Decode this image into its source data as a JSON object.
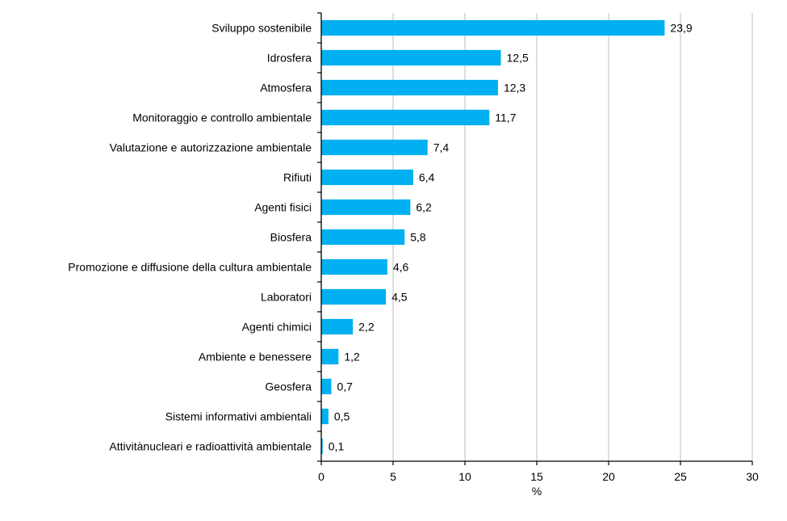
{
  "chart_data": {
    "type": "bar",
    "orientation": "horizontal",
    "title": "",
    "xlabel": "%",
    "ylabel": "",
    "xlim": [
      0,
      30
    ],
    "x_ticks": [
      0,
      5,
      10,
      15,
      20,
      25,
      30
    ],
    "x_tick_labels": [
      "0",
      "5",
      "10",
      "15",
      "20",
      "25",
      "30"
    ],
    "grid": "vertical",
    "legend": "none",
    "bar_color": "#00B0F0",
    "categories": [
      "Sviluppo sostenibile",
      "Idrosfera",
      "Atmosfera",
      "Monitoraggio e controllo ambientale",
      "Valutazione e autorizzazione ambientale",
      "Rifiuti",
      "Agenti fisici",
      "Biosfera",
      "Promozione e diffusione della cultura ambientale",
      "Laboratori",
      "Agenti chimici",
      "Ambiente e benessere",
      "Geosfera",
      "Sistemi informativi ambientali",
      "Attivitànucleari e radioattività ambientale"
    ],
    "values": [
      23.9,
      12.5,
      12.3,
      11.7,
      7.4,
      6.4,
      6.2,
      5.8,
      4.6,
      4.5,
      2.2,
      1.2,
      0.7,
      0.5,
      0.1
    ],
    "data_labels": [
      "23,9",
      "12,5",
      "12,3",
      "11,7",
      "7,4",
      "6,4",
      "6,2",
      "5,8",
      "4,6",
      "4,5",
      "2,2",
      "1,2",
      "0,7",
      "0,5",
      "0,1"
    ]
  }
}
